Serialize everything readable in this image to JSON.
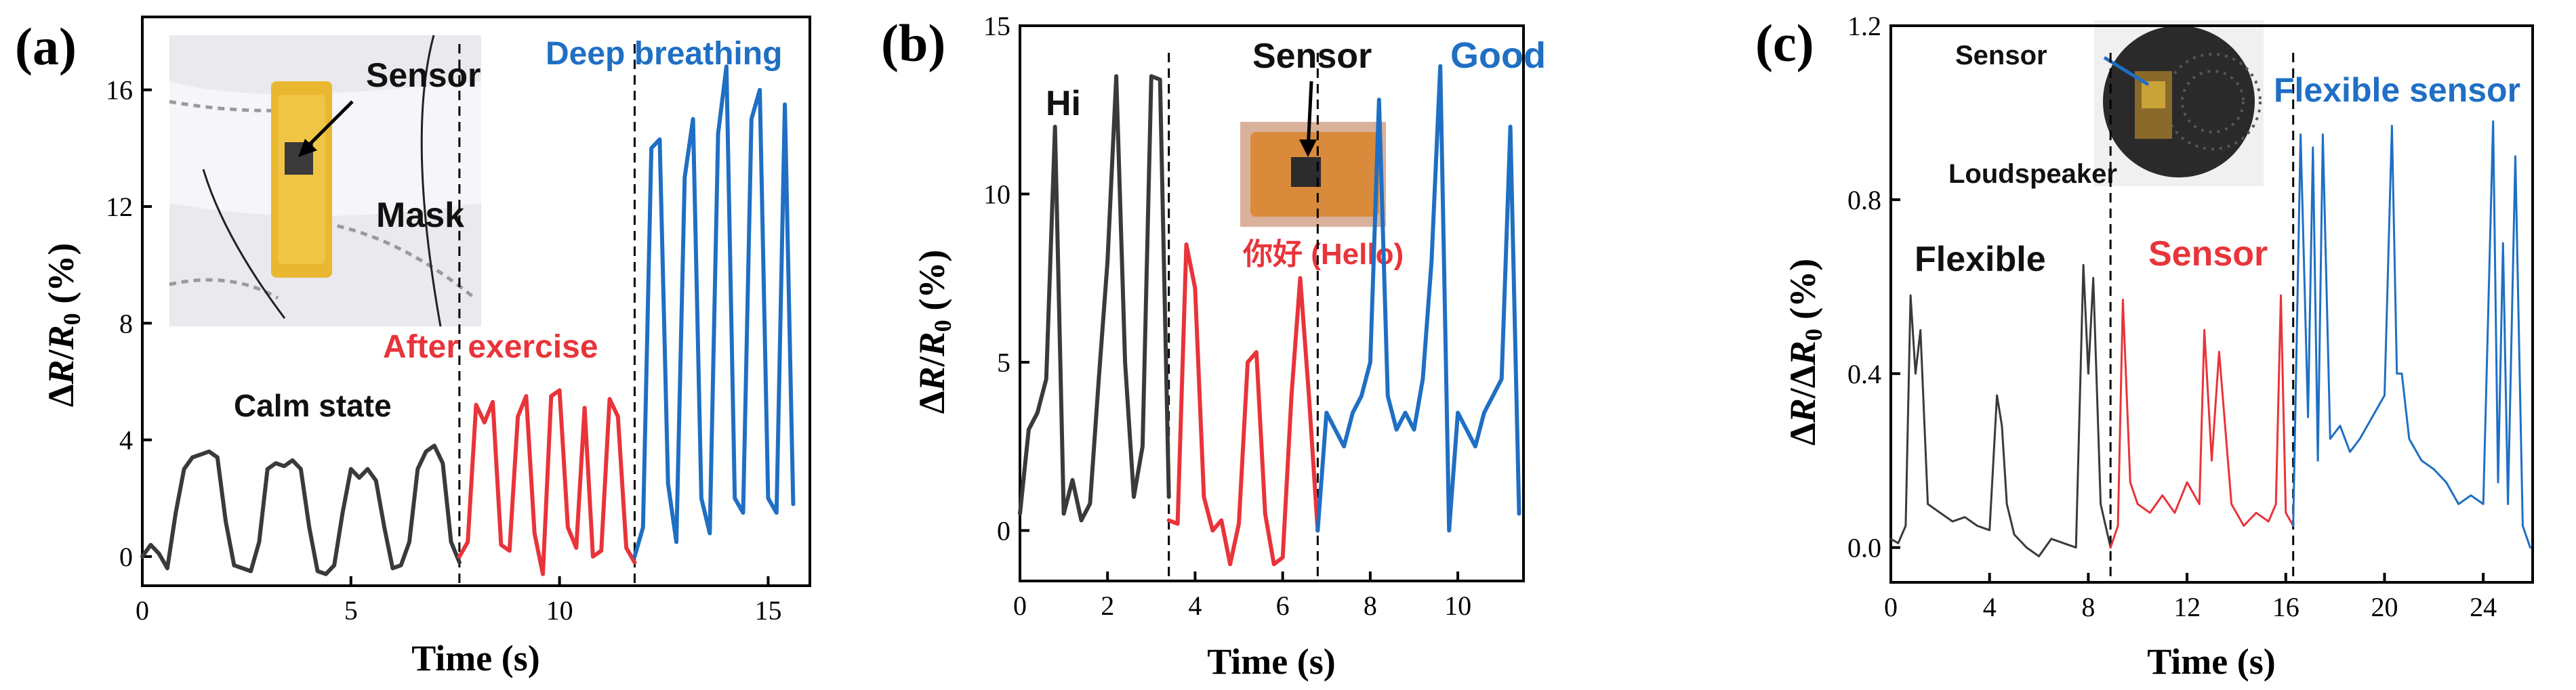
{
  "figure": {
    "panels": [
      "(a)",
      "(b)",
      "(c)"
    ]
  },
  "colors": {
    "black": "#3a3a3a",
    "red": "#e8343a",
    "blue": "#1f6fc4"
  },
  "chart_data": [
    {
      "type": "line",
      "panel_label": "(a)",
      "xlabel": "Time (s)",
      "ylabel": "ΔR/R0 (%)",
      "xlim": [
        0,
        16
      ],
      "ylim": [
        -1,
        18.5
      ],
      "xticks": [
        0,
        5,
        10,
        15
      ],
      "yticks": [
        0,
        4,
        8,
        12,
        16
      ],
      "dividers": [
        7.6,
        11.8
      ],
      "inset_labels": {
        "sensor": "Sensor",
        "mask": "Mask"
      },
      "annotations": [
        "Calm state",
        "After exercise",
        "Deep breathing"
      ],
      "series": [
        {
          "name": "Calm state",
          "color": "black",
          "x": [
            0,
            0.2,
            0.4,
            0.6,
            0.8,
            1.0,
            1.2,
            1.4,
            1.6,
            1.8,
            2.0,
            2.2,
            2.4,
            2.6,
            2.8,
            3.0,
            3.2,
            3.4,
            3.6,
            3.8,
            4.0,
            4.2,
            4.4,
            4.6,
            4.8,
            5.0,
            5.2,
            5.4,
            5.6,
            5.8,
            6.0,
            6.2,
            6.4,
            6.6,
            6.8,
            7.0,
            7.2,
            7.4,
            7.6
          ],
          "y": [
            0,
            0.4,
            0.1,
            -0.4,
            1.5,
            3.0,
            3.4,
            3.5,
            3.6,
            3.4,
            1.2,
            -0.3,
            -0.4,
            -0.5,
            0.5,
            3.0,
            3.2,
            3.1,
            3.3,
            3.0,
            1.0,
            -0.5,
            -0.6,
            -0.3,
            1.5,
            3.0,
            2.7,
            3.0,
            2.6,
            1.0,
            -0.4,
            -0.3,
            0.5,
            3.0,
            3.6,
            3.8,
            3.2,
            0.5,
            -0.2
          ]
        },
        {
          "name": "After exercise",
          "color": "red",
          "x": [
            7.6,
            7.8,
            8.0,
            8.2,
            8.4,
            8.6,
            8.8,
            9.0,
            9.2,
            9.4,
            9.6,
            9.8,
            10.0,
            10.2,
            10.4,
            10.6,
            10.8,
            11.0,
            11.2,
            11.4,
            11.6,
            11.8
          ],
          "y": [
            0.0,
            0.5,
            5.2,
            4.6,
            5.3,
            0.4,
            0.2,
            4.8,
            5.5,
            0.8,
            -0.6,
            5.5,
            5.7,
            1.0,
            0.3,
            5.1,
            0.0,
            0.2,
            5.4,
            4.8,
            0.3,
            -0.2
          ]
        },
        {
          "name": "Deep breathing",
          "color": "blue",
          "x": [
            11.8,
            12.0,
            12.2,
            12.4,
            12.6,
            12.8,
            13.0,
            13.2,
            13.4,
            13.6,
            13.8,
            14.0,
            14.2,
            14.4,
            14.6,
            14.8,
            15.0,
            15.2,
            15.4,
            15.6
          ],
          "y": [
            0.0,
            1.0,
            14.0,
            14.3,
            2.5,
            0.5,
            13.0,
            15.0,
            2.0,
            0.8,
            14.5,
            16.8,
            2.0,
            1.5,
            15.0,
            16.0,
            2.0,
            1.5,
            15.5,
            1.8
          ]
        }
      ]
    },
    {
      "type": "line",
      "panel_label": "(b)",
      "xlabel": "Time (s)",
      "ylabel": "ΔR/R0 (%)",
      "xlim": [
        0,
        11.5
      ],
      "ylim": [
        -1.5,
        15
      ],
      "xticks": [
        0,
        2,
        4,
        6,
        8,
        10
      ],
      "yticks": [
        0,
        5,
        10,
        15
      ],
      "dividers": [
        3.4,
        6.8
      ],
      "inset_labels": {
        "sensor": "Sensor",
        "chinese": "你好 (Hello)"
      },
      "annotations": [
        "Hi",
        "Good"
      ],
      "series": [
        {
          "name": "Hi",
          "color": "black",
          "x": [
            0,
            0.2,
            0.4,
            0.6,
            0.8,
            1.0,
            1.2,
            1.4,
            1.6,
            1.8,
            2.0,
            2.2,
            2.4,
            2.6,
            2.8,
            3.0,
            3.2,
            3.4
          ],
          "y": [
            0.5,
            3.0,
            3.5,
            4.5,
            12.0,
            0.5,
            1.5,
            0.3,
            0.8,
            4.5,
            8.0,
            13.5,
            5.0,
            1.0,
            2.5,
            13.5,
            13.4,
            1.0
          ]
        },
        {
          "name": "你好 (Hello)",
          "color": "red",
          "x": [
            3.4,
            3.6,
            3.8,
            4.0,
            4.2,
            4.4,
            4.6,
            4.8,
            5.0,
            5.2,
            5.4,
            5.6,
            5.8,
            6.0,
            6.2,
            6.4,
            6.6,
            6.8
          ],
          "y": [
            0.3,
            0.2,
            8.5,
            7.2,
            1.0,
            0.0,
            0.3,
            -1.0,
            0.2,
            5.0,
            5.3,
            0.5,
            -1.0,
            -0.8,
            4.0,
            7.5,
            4.0,
            0.0
          ]
        },
        {
          "name": "Good",
          "color": "blue",
          "x": [
            6.8,
            7.0,
            7.2,
            7.4,
            7.6,
            7.8,
            8.0,
            8.2,
            8.4,
            8.6,
            8.8,
            9.0,
            9.2,
            9.4,
            9.6,
            9.8,
            10.0,
            10.2,
            10.4,
            10.6,
            10.8,
            11.0,
            11.2,
            11.4
          ],
          "y": [
            0.0,
            3.5,
            3.0,
            2.5,
            3.5,
            4.0,
            5.0,
            12.8,
            4.0,
            3.0,
            3.5,
            3.0,
            4.5,
            8.0,
            13.8,
            0.0,
            3.5,
            3.0,
            2.5,
            3.5,
            4.0,
            4.5,
            12.0,
            0.5
          ]
        }
      ]
    },
    {
      "type": "line",
      "panel_label": "(c)",
      "xlabel": "Time (s)",
      "ylabel": "ΔR/ΔR0 (%)",
      "xlim": [
        0,
        26
      ],
      "ylim": [
        -0.08,
        1.2
      ],
      "xticks": [
        0,
        4,
        8,
        12,
        16,
        20,
        24
      ],
      "yticks": [
        0.0,
        0.4,
        0.8,
        1.2
      ],
      "dividers": [
        8.9,
        16.3
      ],
      "inset_labels": {
        "sensor": "Sensor",
        "loudspeaker": "Loudspeaker"
      },
      "annotations": [
        "Flexible",
        "Sensor",
        "Flexible sensor"
      ],
      "series": [
        {
          "name": "Flexible",
          "color": "black",
          "x": [
            0,
            0.3,
            0.6,
            0.8,
            1.0,
            1.2,
            1.5,
            2.0,
            2.5,
            3.0,
            3.5,
            4.0,
            4.3,
            4.5,
            4.7,
            5.0,
            5.5,
            6.0,
            6.5,
            7.0,
            7.5,
            7.8,
            8.0,
            8.2,
            8.5,
            8.9
          ],
          "y": [
            0.02,
            0.01,
            0.05,
            0.58,
            0.4,
            0.5,
            0.1,
            0.08,
            0.06,
            0.07,
            0.05,
            0.04,
            0.35,
            0.28,
            0.1,
            0.03,
            0.0,
            -0.02,
            0.02,
            0.01,
            0.0,
            0.65,
            0.4,
            0.62,
            0.1,
            0.0
          ]
        },
        {
          "name": "Sensor",
          "color": "red",
          "x": [
            8.9,
            9.2,
            9.4,
            9.7,
            10.0,
            10.5,
            11.0,
            11.5,
            12.0,
            12.5,
            12.7,
            13.0,
            13.3,
            13.8,
            14.3,
            14.8,
            15.3,
            15.6,
            15.8,
            16.0,
            16.3
          ],
          "y": [
            0.0,
            0.05,
            0.57,
            0.15,
            0.1,
            0.08,
            0.12,
            0.08,
            0.15,
            0.1,
            0.5,
            0.2,
            0.45,
            0.1,
            0.05,
            0.08,
            0.06,
            0.1,
            0.58,
            0.08,
            0.05
          ]
        },
        {
          "name": "Flexible sensor",
          "color": "blue",
          "x": [
            16.3,
            16.6,
            16.9,
            17.1,
            17.3,
            17.5,
            17.8,
            18.2,
            18.6,
            19.0,
            19.5,
            20.0,
            20.3,
            20.5,
            20.7,
            21.0,
            21.5,
            22.0,
            22.5,
            23.0,
            23.5,
            24.0,
            24.4,
            24.6,
            24.8,
            25.0,
            25.3,
            25.6,
            25.9
          ],
          "y": [
            0.05,
            0.95,
            0.3,
            0.92,
            0.2,
            0.95,
            0.25,
            0.28,
            0.22,
            0.25,
            0.3,
            0.35,
            0.97,
            0.4,
            0.4,
            0.25,
            0.2,
            0.18,
            0.15,
            0.1,
            0.12,
            0.1,
            0.98,
            0.15,
            0.7,
            0.1,
            0.9,
            0.05,
            0.0
          ]
        }
      ]
    }
  ]
}
